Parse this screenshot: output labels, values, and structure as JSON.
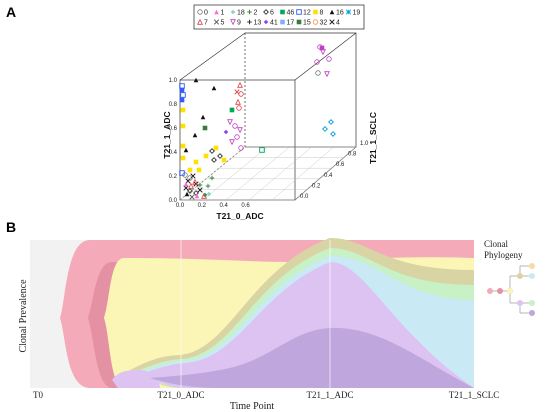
{
  "panel_a_label": "A",
  "panel_b_label": "B",
  "colors": {
    "background_gray": "#f2f2f2",
    "pink": "#f4aab8",
    "dark_pink": "#e591a4",
    "yellow": "#fbf6b6",
    "olive": "#d9d4a4",
    "green": "#c9f1c6",
    "cyan": "#c9e9f5",
    "purple": "#dcc3f2",
    "dark_purple": "#bfa6dd"
  },
  "chart_data": [
    {
      "type": "scatter",
      "title": "",
      "xlabel": "T21_0_ADC",
      "ylabel": "T21_1_ADC",
      "zlabel": "T21_1_SCLC",
      "x_ticks": [
        "0.0",
        "0.2",
        "0.4",
        "0.6",
        "0.8",
        "1.0"
      ],
      "y_ticks": [
        "0.0",
        "0.2",
        "0.4",
        "0.6",
        "0.8",
        "1.0"
      ],
      "z_ticks": [
        "0.0",
        "0.2",
        "0.4",
        "0.6",
        "0.8",
        "1.0"
      ],
      "legend": [
        {
          "name": "0",
          "marker": "circle",
          "color": "#777777"
        },
        {
          "name": "1",
          "marker": "triangle",
          "color": "#ff6ad5"
        },
        {
          "name": "18",
          "marker": "diamond",
          "color": "#8fd3c4"
        },
        {
          "name": "2",
          "marker": "plus",
          "color": "#3a8a3a"
        },
        {
          "name": "6",
          "marker": "diamond-open",
          "color": "#333333"
        },
        {
          "name": "46",
          "marker": "square",
          "color": "#00a859"
        },
        {
          "name": "12",
          "marker": "square-open",
          "color": "#2e5cff"
        },
        {
          "name": "8",
          "marker": "square",
          "color": "#ffe000"
        },
        {
          "name": "16",
          "marker": "triangle",
          "color": "#111111"
        },
        {
          "name": "19",
          "marker": "star",
          "color": "#00a0e0"
        },
        {
          "name": "7",
          "marker": "triangle-open",
          "color": "#e04040"
        },
        {
          "name": "5",
          "marker": "x",
          "color": "#555555"
        },
        {
          "name": "9",
          "marker": "triangle-down",
          "color": "#c040c0"
        },
        {
          "name": "13",
          "marker": "plus",
          "color": "#333333"
        },
        {
          "name": "41",
          "marker": "diamond",
          "color": "#9040ff"
        },
        {
          "name": "17",
          "marker": "square",
          "color": "#7fb0ff"
        },
        {
          "name": "15",
          "marker": "square",
          "color": "#3a7a3a"
        },
        {
          "name": "32",
          "marker": "circle",
          "color": "#ff8a3a"
        },
        {
          "name": "4",
          "marker": "x",
          "color": "#111111"
        }
      ]
    },
    {
      "type": "area",
      "title": "",
      "xlabel": "Time Point",
      "ylabel": "Clonal Prevalence",
      "categories": [
        "T0",
        "T21_0_ADC",
        "T21_1_ADC",
        "T21_1_SCLC"
      ],
      "side_label_1": "Clonal",
      "side_label_2": "Phylogeny"
    }
  ]
}
